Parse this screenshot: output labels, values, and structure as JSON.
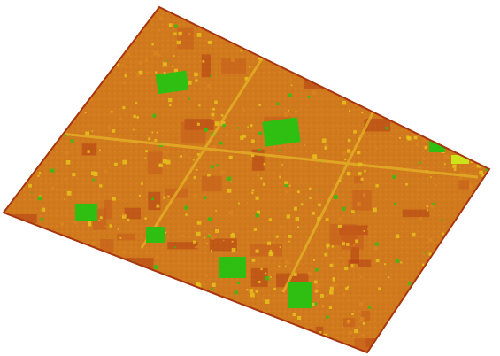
{
  "map": {
    "type": "raster-index-overlay",
    "palette": {
      "low": "#b23e14",
      "low_mid": "#c55a1c",
      "mid": "#d9831f",
      "high_mid": "#e6c21c",
      "high": "#2fbf12",
      "background": "#ffffff"
    },
    "legend_shown": false,
    "labels": []
  }
}
